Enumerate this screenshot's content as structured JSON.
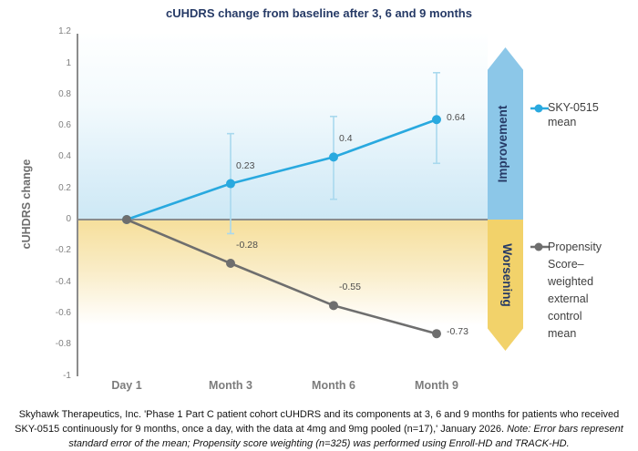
{
  "title": "cUHDRS change from baseline after 3, 6 and 9 months",
  "y_axis_label": "cUHDRS change",
  "arrows": {
    "up_label": "Improvement",
    "down_label": "Worsening",
    "up_color": "#8cc7e8",
    "down_color": "#f2d26a"
  },
  "legend": {
    "sky_label": "SKY-0515\nmean",
    "control_label": "Propensity\nScore–\nweighted\nexternal\ncontrol\nmean"
  },
  "footer": {
    "normal": "Skyhawk Therapeutics, Inc. 'Phase 1 Part C patient cohort cUHDRS and its components at 3, 6 and 9 months for patients who received SKY-0515 continuously for 9 months, once a day, with the data at 4mg and 9mg pooled (n=17),' January 2026. ",
    "italic": "Note: Error bars represent standard error of the mean; Propensity score weighting (n=325) was performed using Enroll-HD and TRACK-HD."
  },
  "chart_data": {
    "type": "line",
    "title": "cUHDRS change from baseline after 3, 6 and 9 months",
    "xlabel": "",
    "ylabel": "cUHDRS change",
    "ylim": [
      -1,
      1.2
    ],
    "grid": false,
    "legend_position": "right",
    "categories": [
      "Day 1",
      "Month 3",
      "Month 6",
      "Month 9"
    ],
    "y_ticks": [
      "1.2",
      "1",
      "0.8",
      "0.6",
      "0.4",
      "0.2",
      "0",
      "-0.2",
      "-0.4",
      "-0.6",
      "-0.8",
      "-1"
    ],
    "series": [
      {
        "name": "SKY-0515 mean",
        "color": "#29a9df",
        "error_color": "#a9d9ee",
        "values": [
          0,
          0.23,
          0.4,
          0.64
        ],
        "labels": [
          "",
          "0.23",
          "0.4",
          "0.64"
        ],
        "error_bars": [
          null,
          [
            -0.09,
            0.55
          ],
          [
            0.13,
            0.66
          ],
          [
            0.36,
            0.94
          ]
        ]
      },
      {
        "name": "Propensity Score–weighted external control mean",
        "color": "#6e6e6e",
        "error_color": null,
        "values": [
          0,
          -0.28,
          -0.55,
          -0.73
        ],
        "labels": [
          "",
          "-0.28",
          "-0.55",
          "-0.73"
        ],
        "error_bars": [
          null,
          null,
          null,
          null
        ]
      }
    ],
    "annotations": [
      "Improvement (above zero)",
      "Worsening (below zero)"
    ]
  }
}
